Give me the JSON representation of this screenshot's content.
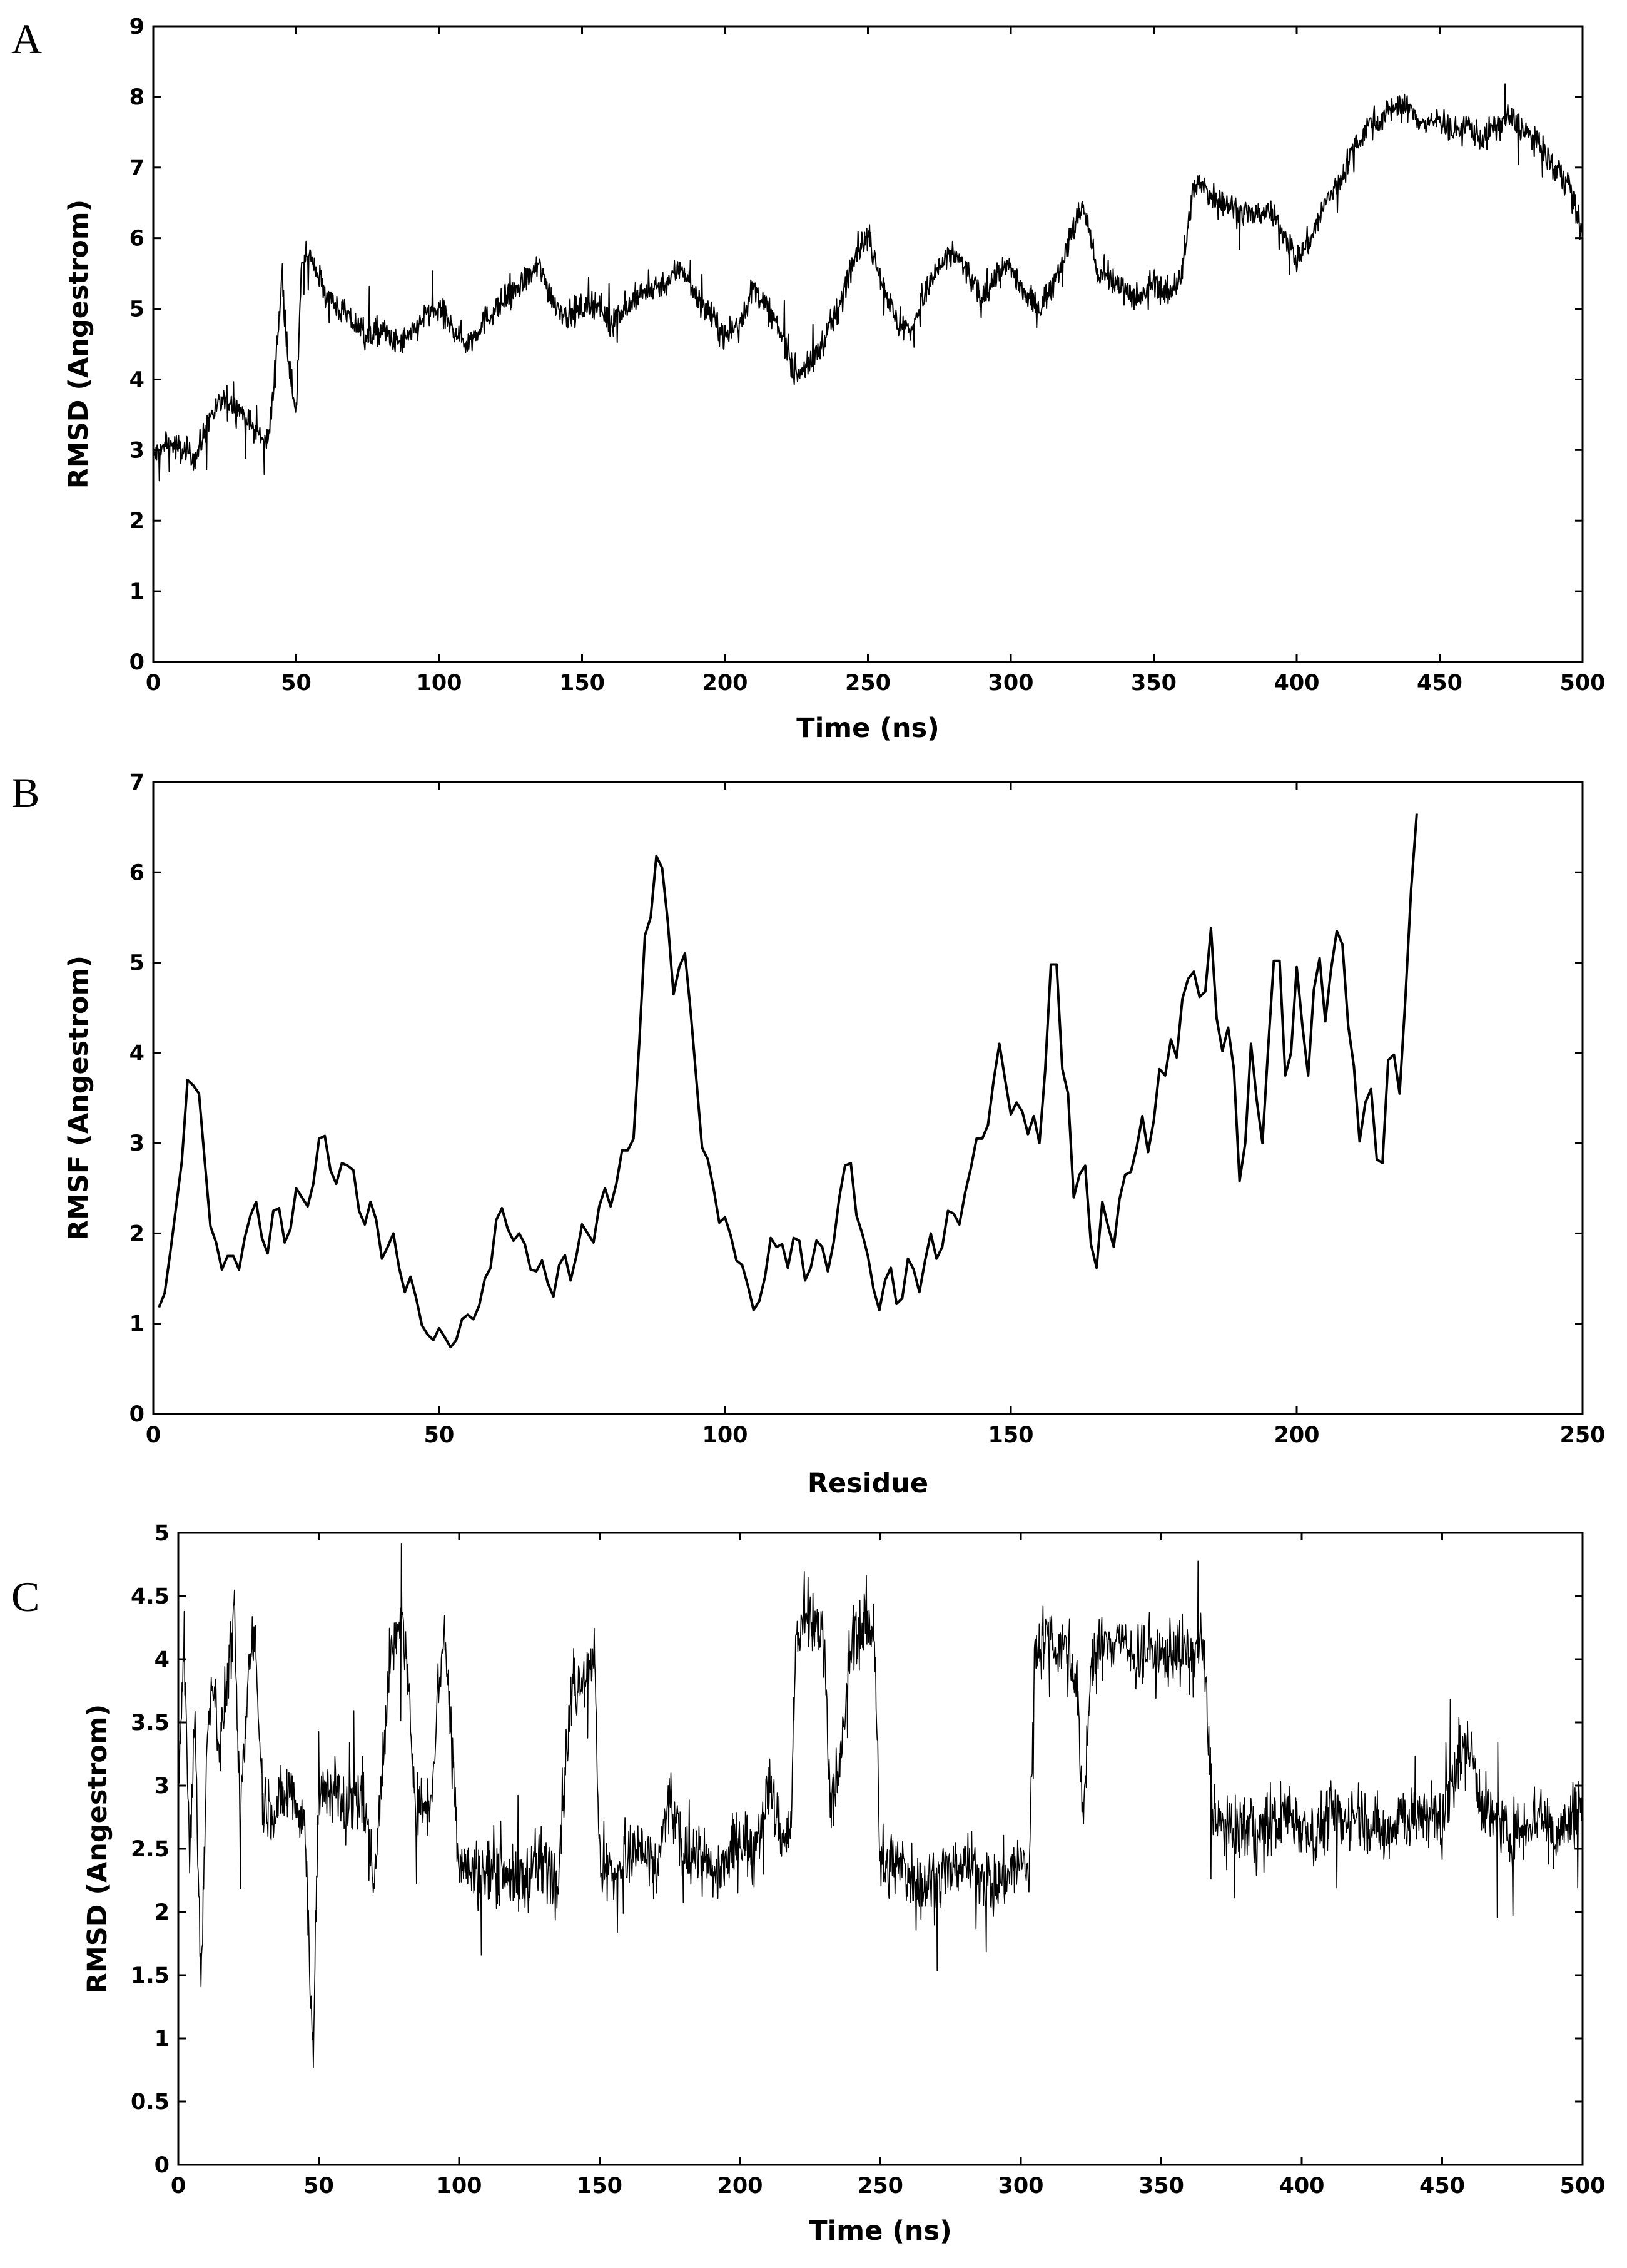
{
  "chart_data": [
    {
      "panel": "A",
      "type": "line",
      "xlabel": "Time (ns)",
      "ylabel": "RMSD (Angestrom)",
      "xlim": [
        0,
        500
      ],
      "ylim": [
        0,
        9
      ],
      "xticks": [
        0,
        50,
        100,
        150,
        200,
        250,
        300,
        350,
        400,
        450,
        500
      ],
      "yticks": [
        0,
        1,
        2,
        3,
        4,
        5,
        6,
        7,
        8,
        9
      ],
      "grid": false,
      "legend": "none",
      "color": "#000000",
      "series": [
        {
          "x": [
            0,
            5,
            10,
            15,
            20,
            25,
            30,
            35,
            40,
            42,
            45,
            48,
            50,
            52,
            55,
            60,
            65,
            70,
            75,
            80,
            85,
            90,
            95,
            100,
            105,
            110,
            115,
            120,
            125,
            130,
            135,
            140,
            145,
            150,
            155,
            160,
            165,
            170,
            175,
            180,
            185,
            190,
            195,
            200,
            205,
            210,
            215,
            220,
            225,
            230,
            235,
            240,
            245,
            250,
            255,
            260,
            265,
            270,
            275,
            280,
            285,
            290,
            295,
            300,
            305,
            310,
            315,
            320,
            325,
            328,
            330,
            335,
            340,
            345,
            350,
            355,
            360,
            363,
            365,
            370,
            375,
            380,
            385,
            390,
            395,
            400,
            405,
            410,
            415,
            420,
            425,
            430,
            435,
            440,
            445,
            450,
            455,
            460,
            465,
            470,
            475,
            480,
            485,
            490,
            495,
            500
          ],
          "y": [
            2.9,
            3.1,
            3.0,
            2.9,
            3.5,
            3.7,
            3.6,
            3.3,
            3.1,
            3.8,
            5.4,
            4.0,
            3.6,
            5.6,
            5.8,
            5.2,
            5.0,
            4.8,
            4.6,
            4.7,
            4.5,
            4.6,
            4.9,
            5.0,
            4.7,
            4.5,
            4.8,
            5.0,
            5.2,
            5.4,
            5.6,
            5.1,
            4.9,
            5.0,
            5.1,
            4.8,
            5.0,
            5.2,
            5.3,
            5.4,
            5.6,
            5.2,
            4.9,
            4.6,
            4.8,
            5.3,
            5.0,
            4.6,
            4.1,
            4.2,
            4.6,
            5.0,
            5.8,
            6.0,
            5.4,
            4.8,
            4.7,
            5.2,
            5.6,
            5.8,
            5.5,
            5.1,
            5.5,
            5.6,
            5.2,
            5.0,
            5.4,
            5.9,
            6.5,
            6.0,
            5.5,
            5.4,
            5.3,
            5.1,
            5.4,
            5.2,
            5.5,
            6.5,
            6.8,
            6.6,
            6.5,
            6.4,
            6.3,
            6.4,
            6.1,
            5.7,
            6.0,
            6.5,
            6.8,
            7.3,
            7.6,
            7.7,
            7.9,
            7.8,
            7.6,
            7.7,
            7.5,
            7.6,
            7.4,
            7.6,
            7.7,
            7.5,
            7.3,
            7.0,
            6.8,
            6.0
          ]
        }
      ]
    },
    {
      "panel": "B",
      "type": "line",
      "xlabel": "Residue",
      "ylabel": "RMSF (Angestrom)",
      "xlim": [
        0,
        250
      ],
      "ylim": [
        0,
        7
      ],
      "xticks": [
        0,
        50,
        100,
        150,
        200,
        250
      ],
      "yticks": [
        0,
        1,
        2,
        3,
        4,
        5,
        6,
        7
      ],
      "grid": false,
      "legend": "none",
      "color": "#000000",
      "series": [
        {
          "x": [
            1,
            2,
            3,
            4,
            5,
            6,
            7,
            8,
            9,
            10,
            11,
            12,
            13,
            14,
            15,
            16,
            17,
            18,
            19,
            20,
            21,
            22,
            23,
            24,
            25,
            26,
            27,
            28,
            29,
            30,
            31,
            32,
            33,
            34,
            35,
            36,
            37,
            38,
            39,
            40,
            41,
            42,
            43,
            44,
            45,
            46,
            47,
            48,
            49,
            50,
            51,
            52,
            53,
            54,
            55,
            56,
            57,
            58,
            59,
            60,
            61,
            62,
            63,
            64,
            65,
            66,
            67,
            68,
            69,
            70,
            71,
            72,
            73,
            74,
            75,
            76,
            77,
            78,
            79,
            80,
            81,
            82,
            83,
            84,
            85,
            86,
            87,
            88,
            89,
            90,
            91,
            92,
            93,
            94,
            95,
            96,
            97,
            98,
            99,
            100,
            101,
            102,
            103,
            104,
            105,
            106,
            107,
            108,
            109,
            110,
            111,
            112,
            113,
            114,
            115,
            116,
            117,
            118,
            119,
            120,
            121,
            122,
            123,
            124,
            125,
            126,
            127,
            128,
            129,
            130,
            131,
            132,
            133,
            134,
            135,
            136,
            137,
            138,
            139,
            140,
            141,
            142,
            143,
            144,
            145,
            146,
            147,
            148,
            149,
            150,
            151,
            152,
            153,
            154,
            155,
            156,
            157,
            158,
            159,
            160,
            161,
            162,
            163,
            164,
            165,
            166,
            167,
            168,
            169,
            170,
            171,
            172,
            173,
            174,
            175,
            176,
            177,
            178,
            179,
            180,
            181,
            182,
            183,
            184,
            185,
            186,
            187,
            188,
            189,
            190,
            191,
            192,
            193,
            194,
            195,
            196,
            197,
            198,
            199,
            200,
            201,
            202,
            203,
            204,
            205,
            206,
            207,
            208,
            209,
            210,
            211,
            212,
            213,
            214,
            215,
            216,
            217,
            218,
            219,
            220,
            221
          ],
          "y": [
            1.18,
            1.34,
            1.8,
            2.3,
            2.8,
            3.7,
            3.64,
            3.55,
            2.8,
            2.08,
            1.9,
            1.6,
            1.75,
            1.75,
            1.6,
            1.95,
            2.2,
            2.35,
            1.95,
            1.78,
            2.25,
            2.28,
            1.9,
            2.05,
            2.5,
            2.4,
            2.3,
            2.55,
            3.05,
            3.08,
            2.7,
            2.55,
            2.78,
            2.75,
            2.7,
            2.25,
            2.1,
            2.35,
            2.15,
            1.72,
            1.85,
            2.0,
            1.62,
            1.35,
            1.52,
            1.28,
            0.98,
            0.88,
            0.82,
            0.95,
            0.85,
            0.74,
            0.82,
            1.05,
            1.1,
            1.05,
            1.2,
            1.5,
            1.62,
            2.15,
            2.28,
            2.05,
            1.92,
            2.0,
            1.88,
            1.6,
            1.58,
            1.7,
            1.45,
            1.3,
            1.65,
            1.76,
            1.48,
            1.75,
            2.1,
            2.0,
            1.9,
            2.3,
            2.5,
            2.3,
            2.55,
            2.92,
            2.92,
            3.05,
            4.1,
            5.3,
            5.5,
            6.18,
            6.05,
            5.45,
            4.65,
            4.95,
            5.1,
            4.45,
            3.7,
            2.95,
            2.82,
            2.5,
            2.12,
            2.18,
            1.98,
            1.7,
            1.65,
            1.42,
            1.15,
            1.25,
            1.52,
            1.95,
            1.85,
            1.88,
            1.62,
            1.95,
            1.92,
            1.48,
            1.62,
            1.92,
            1.85,
            1.58,
            1.9,
            2.4,
            2.75,
            2.78,
            2.2,
            2.0,
            1.75,
            1.38,
            1.15,
            1.48,
            1.62,
            1.22,
            1.28,
            1.72,
            1.6,
            1.35,
            1.7,
            2.0,
            1.72,
            1.85,
            2.25,
            2.22,
            2.1,
            2.45,
            2.72,
            3.05,
            3.05,
            3.2,
            3.7,
            4.1,
            3.7,
            3.32,
            3.45,
            3.35,
            3.1,
            3.3,
            3.0,
            3.8,
            4.98,
            4.98,
            3.82,
            3.55,
            2.4,
            2.65,
            2.75,
            1.88,
            1.62,
            2.35,
            2.08,
            1.85,
            2.38,
            2.65,
            2.68,
            2.95,
            3.3,
            2.9,
            3.25,
            3.82,
            3.75,
            4.15,
            3.95,
            4.6,
            4.82,
            4.9,
            4.62,
            4.68,
            5.38,
            4.38,
            4.02,
            4.28,
            3.82,
            2.58,
            3.0,
            4.1,
            3.48,
            3.0,
            4.05,
            5.02,
            5.02,
            3.75,
            4.0,
            4.95,
            4.3,
            3.75,
            4.7,
            5.05,
            4.35,
            4.92,
            5.35,
            5.2,
            4.3,
            3.85,
            3.02,
            3.45,
            3.6,
            2.82,
            2.78,
            3.92,
            3.98,
            3.55,
            4.6,
            5.8,
            6.65
          ]
        }
      ]
    },
    {
      "panel": "C",
      "type": "line",
      "xlabel": "Time (ns)",
      "ylabel": "RMSD (Angestrom)",
      "xlim": [
        0,
        500
      ],
      "ylim": [
        0,
        5
      ],
      "xticks": [
        0,
        50,
        100,
        150,
        200,
        250,
        300,
        350,
        400,
        450,
        500
      ],
      "yticks": [
        0,
        0.5,
        1,
        1.5,
        2,
        2.5,
        3,
        3.5,
        4,
        4.5,
        5
      ],
      "grid": false,
      "legend": "none",
      "color": "#000000",
      "series": [
        {
          "x": [
            0,
            2,
            4,
            6,
            8,
            10,
            12,
            15,
            18,
            20,
            22,
            25,
            27,
            30,
            35,
            40,
            45,
            48,
            50,
            55,
            60,
            65,
            67,
            70,
            72,
            75,
            78,
            80,
            85,
            90,
            93,
            95,
            98,
            100,
            105,
            110,
            115,
            120,
            125,
            130,
            135,
            138,
            140,
            145,
            148,
            150,
            155,
            160,
            165,
            170,
            175,
            180,
            185,
            190,
            195,
            200,
            205,
            210,
            215,
            218,
            220,
            225,
            230,
            232,
            235,
            240,
            245,
            248,
            250,
            255,
            260,
            265,
            270,
            275,
            280,
            285,
            290,
            295,
            300,
            303,
            305,
            310,
            315,
            320,
            322,
            325,
            330,
            335,
            340,
            345,
            350,
            355,
            360,
            365,
            368,
            370,
            375,
            380,
            385,
            390,
            395,
            400,
            405,
            410,
            415,
            420,
            425,
            430,
            435,
            440,
            445,
            450,
            455,
            460,
            465,
            470,
            475,
            480,
            485,
            490,
            495,
            500
          ],
          "y": [
            3.0,
            4.2,
            2.4,
            3.6,
            1.4,
            3.2,
            3.9,
            3.3,
            4.0,
            4.3,
            2.7,
            3.9,
            4.3,
            2.9,
            2.8,
            3.0,
            2.7,
            0.9,
            2.9,
            3.0,
            2.8,
            3.0,
            2.7,
            2.2,
            3.0,
            3.9,
            4.2,
            4.3,
            2.8,
            2.9,
            3.9,
            4.2,
            3.1,
            2.4,
            2.3,
            2.3,
            2.4,
            2.2,
            2.3,
            2.4,
            2.3,
            3.2,
            3.7,
            3.9,
            4.1,
            2.4,
            2.3,
            2.4,
            2.5,
            2.3,
            2.9,
            2.4,
            2.5,
            2.3,
            2.4,
            2.6,
            2.5,
            3.0,
            2.6,
            2.6,
            4.2,
            4.3,
            4.2,
            2.9,
            3.0,
            4.2,
            4.3,
            4.2,
            2.3,
            2.4,
            2.3,
            2.2,
            2.3,
            2.3,
            2.4,
            2.3,
            2.2,
            2.3,
            2.4,
            2.3,
            4.1,
            4.2,
            4.1,
            3.9,
            2.6,
            4.0,
            4.1,
            4.2,
            4.0,
            4.1,
            4.0,
            4.1,
            4.0,
            4.1,
            2.9,
            2.7,
            2.6,
            2.7,
            2.6,
            2.7,
            2.8,
            2.7,
            2.6,
            2.8,
            2.7,
            2.8,
            2.7,
            2.6,
            2.8,
            2.7,
            2.8,
            2.7,
            3.2,
            3.3,
            2.8,
            2.7,
            2.6,
            2.7,
            2.8,
            2.6,
            2.7,
            2.9
          ]
        }
      ]
    }
  ]
}
